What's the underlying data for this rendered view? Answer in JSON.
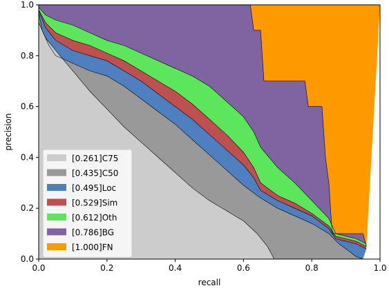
{
  "chart_data": {
    "type": "area",
    "title": "",
    "xlabel": "recall",
    "ylabel": "precision",
    "xlim": [
      0,
      1
    ],
    "ylim": [
      0,
      1
    ],
    "x_ticks": [
      "0.0",
      "0.2",
      "0.4",
      "0.6",
      "0.8",
      "1.0"
    ],
    "y_ticks": [
      "0.0",
      "0.2",
      "0.4",
      "0.6",
      "0.8",
      "1.0"
    ],
    "grid": false,
    "legend_position": "lower-left",
    "series": [
      {
        "name": "[0.261]C75",
        "color": "#cccccc",
        "points": [
          [
            0,
            0.93
          ],
          [
            0.02,
            0.87
          ],
          [
            0.05,
            0.82
          ],
          [
            0.1,
            0.74
          ],
          [
            0.15,
            0.66
          ],
          [
            0.2,
            0.59
          ],
          [
            0.25,
            0.52
          ],
          [
            0.3,
            0.46
          ],
          [
            0.35,
            0.4
          ],
          [
            0.4,
            0.34
          ],
          [
            0.45,
            0.28
          ],
          [
            0.5,
            0.23
          ],
          [
            0.55,
            0.19
          ],
          [
            0.6,
            0.15
          ],
          [
            0.64,
            0.1
          ],
          [
            0.67,
            0.05
          ],
          [
            0.69,
            0
          ]
        ]
      },
      {
        "name": "[0.435]C50",
        "color": "#999999",
        "points": [
          [
            0,
            0.97
          ],
          [
            0.01,
            0.9
          ],
          [
            0.03,
            0.84
          ],
          [
            0.05,
            0.8
          ],
          [
            0.1,
            0.77
          ],
          [
            0.15,
            0.74
          ],
          [
            0.2,
            0.72
          ],
          [
            0.25,
            0.68
          ],
          [
            0.3,
            0.63
          ],
          [
            0.35,
            0.58
          ],
          [
            0.4,
            0.53
          ],
          [
            0.45,
            0.47
          ],
          [
            0.5,
            0.41
          ],
          [
            0.55,
            0.35
          ],
          [
            0.6,
            0.29
          ],
          [
            0.65,
            0.24
          ],
          [
            0.7,
            0.2
          ],
          [
            0.75,
            0.17
          ],
          [
            0.8,
            0.14
          ],
          [
            0.85,
            0.1
          ],
          [
            0.88,
            0.06
          ],
          [
            0.91,
            0.03
          ],
          [
            0.93,
            0.01
          ],
          [
            0.95,
            0
          ]
        ]
      },
      {
        "name": "[0.495]Loc",
        "color": "#4e80c0",
        "points": [
          [
            0,
            0.98
          ],
          [
            0.02,
            0.91
          ],
          [
            0.05,
            0.86
          ],
          [
            0.1,
            0.82
          ],
          [
            0.15,
            0.8
          ],
          [
            0.2,
            0.78
          ],
          [
            0.25,
            0.74
          ],
          [
            0.3,
            0.7
          ],
          [
            0.35,
            0.65
          ],
          [
            0.4,
            0.6
          ],
          [
            0.45,
            0.55
          ],
          [
            0.5,
            0.49
          ],
          [
            0.55,
            0.43
          ],
          [
            0.6,
            0.37
          ],
          [
            0.63,
            0.32
          ],
          [
            0.65,
            0.27
          ],
          [
            0.7,
            0.23
          ],
          [
            0.75,
            0.2
          ],
          [
            0.8,
            0.17
          ],
          [
            0.85,
            0.12
          ],
          [
            0.87,
            0.08
          ],
          [
            0.9,
            0.07
          ],
          [
            0.93,
            0.06
          ],
          [
            0.96,
            0.04
          ]
        ]
      },
      {
        "name": "[0.529]Sim",
        "color": "#c05050",
        "points": [
          [
            0,
            0.98
          ],
          [
            0.02,
            0.93
          ],
          [
            0.05,
            0.89
          ],
          [
            0.1,
            0.86
          ],
          [
            0.15,
            0.84
          ],
          [
            0.2,
            0.81
          ],
          [
            0.25,
            0.78
          ],
          [
            0.3,
            0.74
          ],
          [
            0.35,
            0.7
          ],
          [
            0.4,
            0.66
          ],
          [
            0.45,
            0.61
          ],
          [
            0.5,
            0.55
          ],
          [
            0.55,
            0.49
          ],
          [
            0.6,
            0.42
          ],
          [
            0.63,
            0.36
          ],
          [
            0.65,
            0.3
          ],
          [
            0.7,
            0.25
          ],
          [
            0.75,
            0.22
          ],
          [
            0.8,
            0.18
          ],
          [
            0.85,
            0.13
          ],
          [
            0.87,
            0.09
          ],
          [
            0.9,
            0.08
          ],
          [
            0.93,
            0.07
          ],
          [
            0.96,
            0.05
          ]
        ]
      },
      {
        "name": "[0.612]Oth",
        "color": "#5ce65c",
        "points": [
          [
            0,
            0.99
          ],
          [
            0.02,
            0.96
          ],
          [
            0.05,
            0.94
          ],
          [
            0.1,
            0.92
          ],
          [
            0.15,
            0.89
          ],
          [
            0.2,
            0.86
          ],
          [
            0.25,
            0.84
          ],
          [
            0.3,
            0.81
          ],
          [
            0.35,
            0.78
          ],
          [
            0.4,
            0.75
          ],
          [
            0.45,
            0.72
          ],
          [
            0.5,
            0.68
          ],
          [
            0.55,
            0.62
          ],
          [
            0.6,
            0.56
          ],
          [
            0.63,
            0.5
          ],
          [
            0.65,
            0.44
          ],
          [
            0.7,
            0.36
          ],
          [
            0.75,
            0.3
          ],
          [
            0.8,
            0.23
          ],
          [
            0.85,
            0.16
          ],
          [
            0.87,
            0.1
          ],
          [
            0.9,
            0.09
          ],
          [
            0.93,
            0.08
          ],
          [
            0.96,
            0.06
          ]
        ]
      },
      {
        "name": "[0.786]BG",
        "color": "#8064a2",
        "points": [
          [
            0,
            1
          ],
          [
            0.62,
            1
          ],
          [
            0.63,
            0.9
          ],
          [
            0.65,
            0.9
          ],
          [
            0.66,
            0.7
          ],
          [
            0.78,
            0.7
          ],
          [
            0.79,
            0.6
          ],
          [
            0.83,
            0.6
          ],
          [
            0.84,
            0.4
          ],
          [
            0.85,
            0.3
          ],
          [
            0.86,
            0.1
          ],
          [
            0.95,
            0.1
          ],
          [
            0.96,
            0.05
          ]
        ]
      },
      {
        "name": "[1.000]FN",
        "color": "#ff9900",
        "points": [
          [
            0,
            1
          ],
          [
            1,
            1
          ]
        ]
      }
    ]
  }
}
